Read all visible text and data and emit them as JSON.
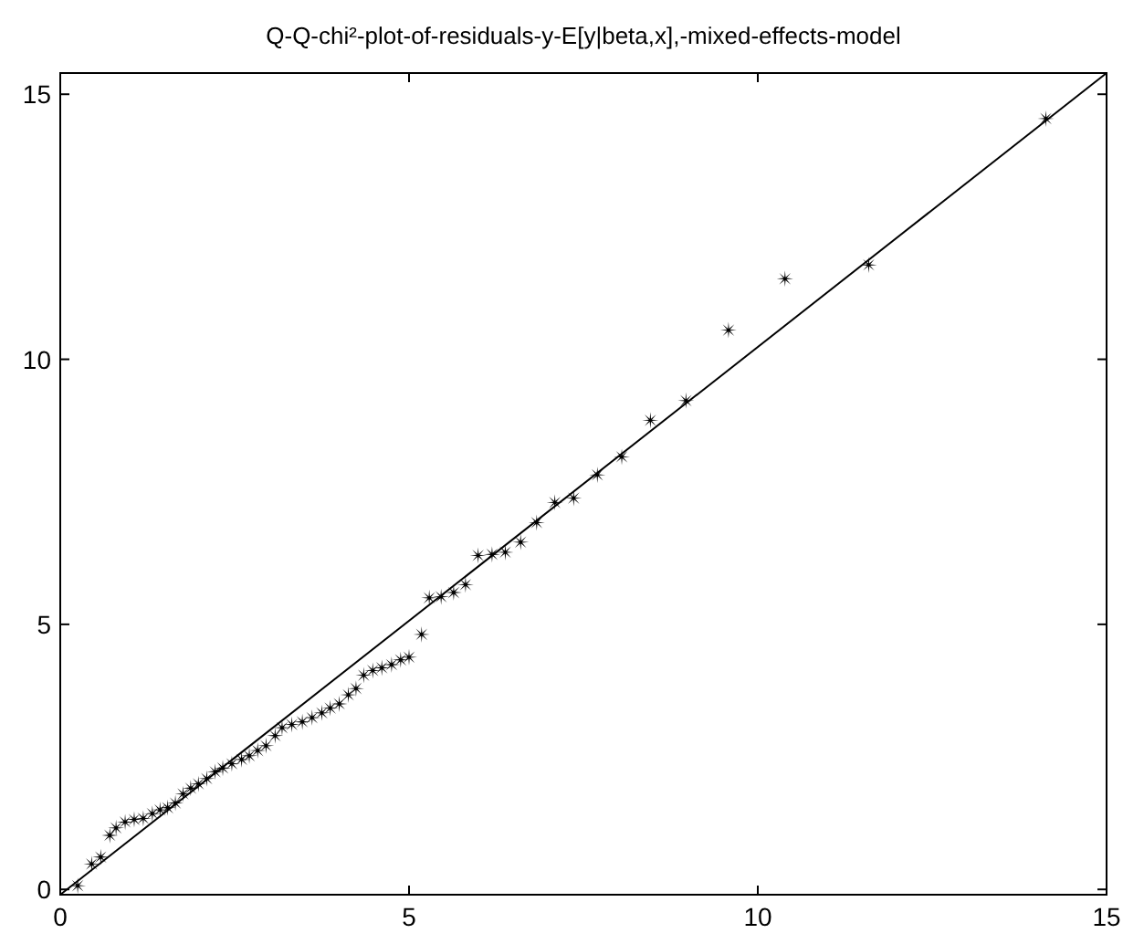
{
  "chart_data": {
    "type": "scatter",
    "title": "Q-Q-chi²-plot-of-residuals-y-E[y|beta,x],-mixed-effects-model",
    "xlim": [
      0,
      15
    ],
    "ylim": [
      -0.1,
      15.4
    ],
    "xticks": [
      0,
      5,
      10,
      15
    ],
    "yticks": [
      0,
      5,
      10,
      15
    ],
    "grid": false,
    "marker": "star",
    "series": [
      {
        "type": "line",
        "color": "#000000",
        "marker": "none",
        "line_style": "solid",
        "x": [
          0,
          15
        ],
        "values": [
          -0.1,
          15.4
        ]
      },
      {
        "color": "#000000",
        "x": [
          0.25,
          0.45,
          0.58,
          0.71,
          0.8,
          0.93,
          1.06,
          1.19,
          1.32,
          1.43,
          1.54,
          1.65,
          1.76,
          1.87,
          1.98,
          2.1,
          2.22,
          2.33,
          2.46,
          2.6,
          2.71,
          2.83,
          2.95,
          3.08,
          3.18,
          3.32,
          3.47,
          3.61,
          3.75,
          3.87,
          4.0,
          4.13,
          4.24,
          4.35,
          4.48,
          4.61,
          4.75,
          4.88,
          5.0,
          5.18,
          5.29,
          5.46,
          5.64,
          5.81,
          5.99,
          6.19,
          6.38,
          6.6,
          6.83,
          7.09,
          7.36,
          7.7,
          8.05,
          8.46,
          8.97,
          9.58,
          10.39,
          11.59,
          14.13
        ],
        "values": [
          0.07,
          0.48,
          0.61,
          1.02,
          1.16,
          1.27,
          1.32,
          1.34,
          1.43,
          1.5,
          1.54,
          1.63,
          1.8,
          1.91,
          1.99,
          2.09,
          2.22,
          2.29,
          2.37,
          2.45,
          2.52,
          2.62,
          2.71,
          2.9,
          3.05,
          3.11,
          3.16,
          3.24,
          3.33,
          3.42,
          3.5,
          3.67,
          3.79,
          4.04,
          4.13,
          4.18,
          4.24,
          4.33,
          4.38,
          4.81,
          5.5,
          5.52,
          5.6,
          5.75,
          6.3,
          6.32,
          6.36,
          6.55,
          6.92,
          7.3,
          7.38,
          7.82,
          8.16,
          8.85,
          9.22,
          10.55,
          11.52,
          11.78,
          14.54
        ]
      }
    ]
  }
}
